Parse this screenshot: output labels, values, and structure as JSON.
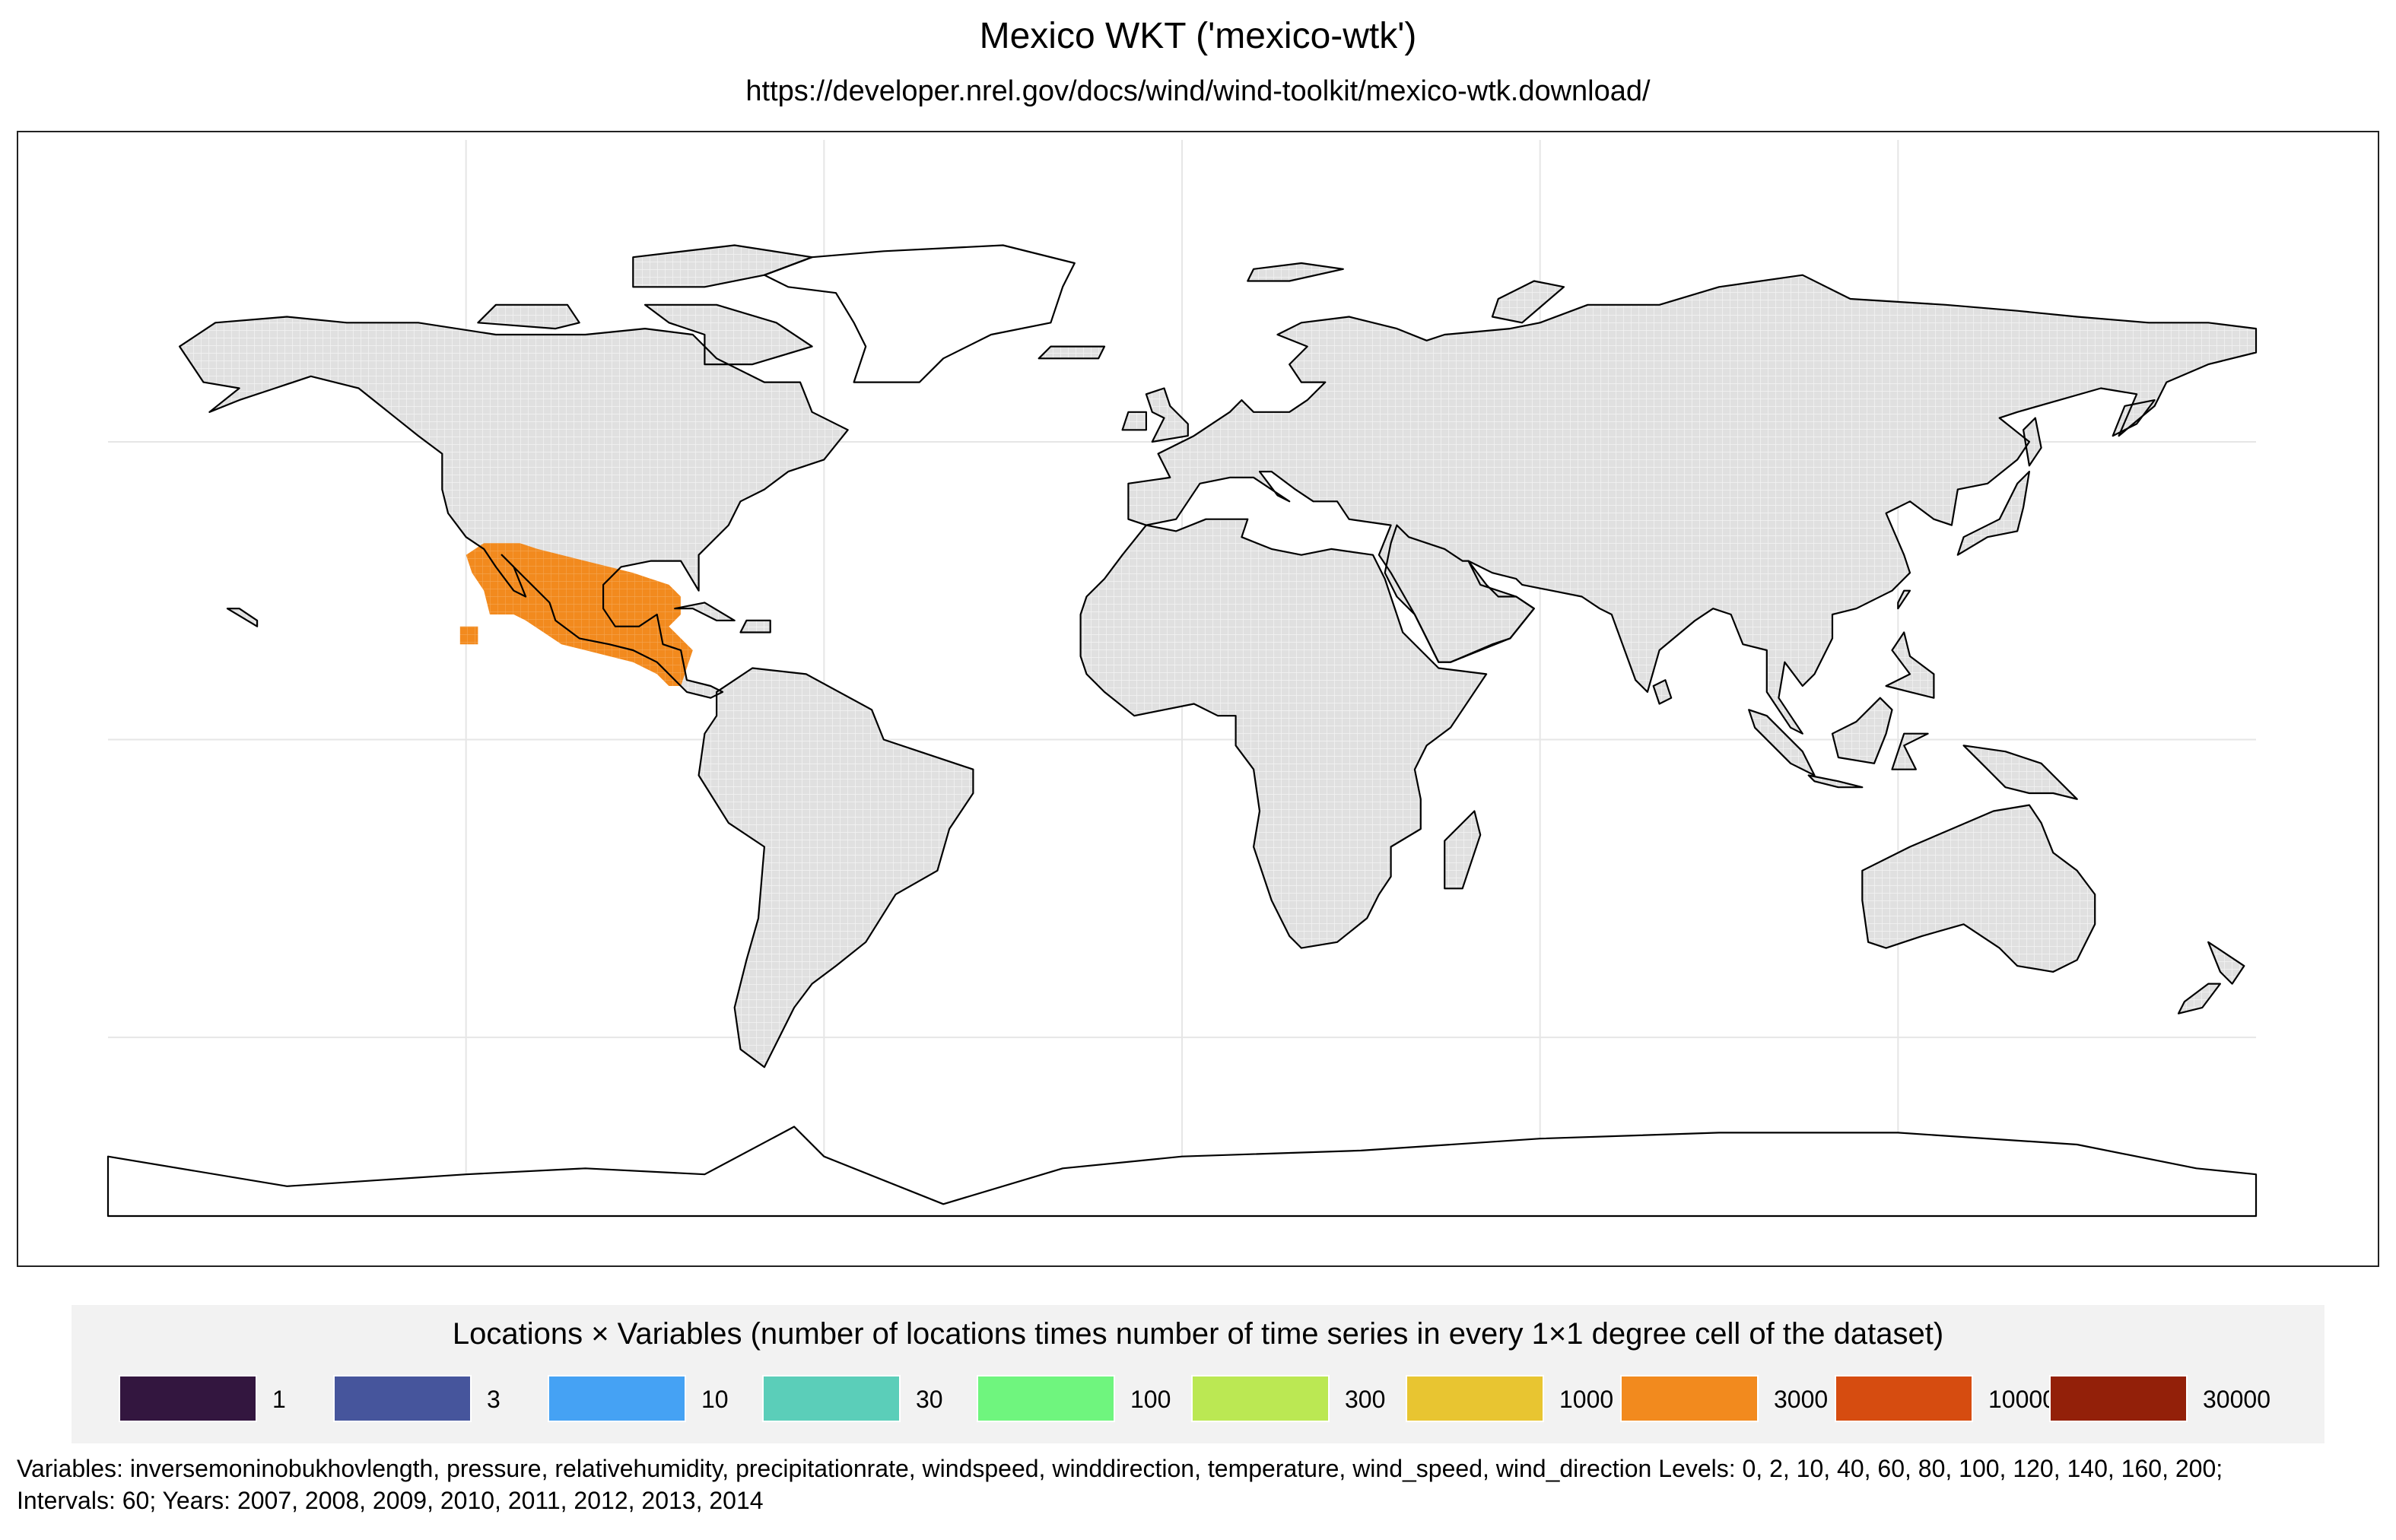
{
  "header": {
    "title": "Mexico WKT ('mexico-wtk')",
    "subtitle": "https://developer.nrel.gov/docs/wind/wind-toolkit/mexico-wtk.download/"
  },
  "colors": {
    "land_fill": "#e0e0e0",
    "land_cell_grid": "#f4f4f4",
    "coastline": "#000000",
    "graticule": "#e6e6e6",
    "dataset_cells": "#f28a1e",
    "legend_background": "#f2f2f2"
  },
  "map": {
    "projection": "equirectangular",
    "lon_range": [
      -180,
      180
    ],
    "lat_range": [
      -90,
      90
    ],
    "graticule_lon": [
      -120,
      -60,
      0,
      60,
      120
    ],
    "graticule_lat": [
      -50,
      0,
      50
    ],
    "dataset_region": "Mexico and Central America",
    "dataset_value_bin": "3000"
  },
  "legend": {
    "title": "Locations × Variables (number of locations times number of time series in every 1×1 degree cell of the dataset)",
    "items": [
      {
        "label": "1",
        "color": "#33163f"
      },
      {
        "label": "3",
        "color": "#46559c"
      },
      {
        "label": "10",
        "color": "#45a2f4"
      },
      {
        "label": "30",
        "color": "#5bceb9"
      },
      {
        "label": "100",
        "color": "#6ff57e"
      },
      {
        "label": "300",
        "color": "#bbe853"
      },
      {
        "label": "1000",
        "color": "#e8c531"
      },
      {
        "label": "3000",
        "color": "#f28a1e"
      },
      {
        "label": "10000",
        "color": "#d64c10"
      },
      {
        "label": "30000",
        "color": "#932009"
      }
    ]
  },
  "footer": {
    "text": "Variables: inversemoninobukhovlength, pressure, relativehumidity, precipitationrate, windspeed, winddirection, temperature, wind_speed, wind_direction Levels: 0, 2, 10, 40, 60, 80, 100, 120, 140, 160, 200; Intervals: 60; Years: 2007, 2008, 2009, 2010, 2011, 2012, 2013, 2014"
  }
}
